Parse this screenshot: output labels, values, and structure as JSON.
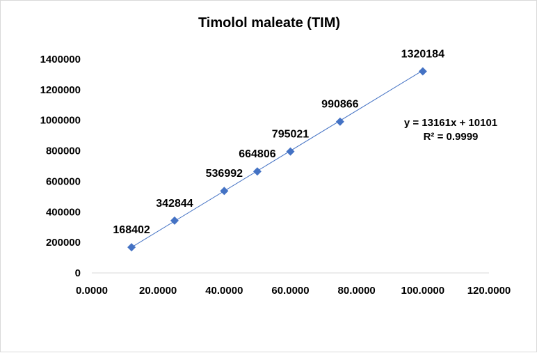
{
  "chart_data": {
    "type": "scatter",
    "title": "Timolol maleate (TIM)",
    "xlabel": "",
    "ylabel": "",
    "xlim": [
      0,
      120
    ],
    "ylim": [
      0,
      1400000
    ],
    "x_ticks": [
      "0.0000",
      "20.0000",
      "40.0000",
      "60.0000",
      "80.0000",
      "100.0000",
      "120.0000"
    ],
    "y_ticks": [
      "0",
      "200000",
      "400000",
      "600000",
      "800000",
      "1000000",
      "1200000",
      "1400000"
    ],
    "grid": false,
    "legend": "none",
    "series": [
      {
        "x": [
          12,
          25,
          40,
          50,
          60,
          75,
          100
        ],
        "y": [
          168402,
          342844,
          536992,
          664806,
          795021,
          990866,
          1320184
        ],
        "labels": [
          "168402",
          "342844",
          "536992",
          "664806",
          "795021",
          "990866",
          "1320184"
        ],
        "color": "#4472c4"
      }
    ],
    "trendline": {
      "type": "linear",
      "slope": 13161,
      "intercept": 10101,
      "equation": "y = 13161x + 10101",
      "r_squared": "R² = 0.9999",
      "color": "#4472c4"
    }
  }
}
